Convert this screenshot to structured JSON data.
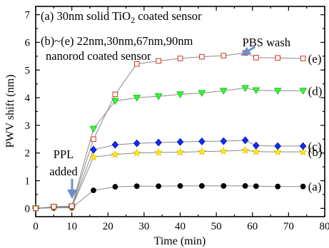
{
  "chart_data": {
    "type": "scatter",
    "xlabel": "Time (min)",
    "ylabel": "PWV shift (nm)",
    "xlim": [
      0,
      80
    ],
    "ylim": [
      -0.3,
      7.3
    ],
    "x_ticks": [
      0,
      10,
      20,
      30,
      40,
      50,
      60,
      70,
      80
    ],
    "y_ticks": [
      0,
      1,
      2,
      3,
      4,
      5,
      6,
      7
    ],
    "grid": false,
    "annotations": {
      "line_a_pre": "(a) 30nm solid TiO",
      "line_a_sub": "2",
      "line_a_post": " coated sensor",
      "line_b": "(b)~(e) 22nm,30nm,67nm,90nm",
      "line_c": "nanorod coated sensor",
      "ppl_1": "PPL",
      "ppl_2": "added",
      "pbs": "PBS wash"
    },
    "series": [
      {
        "name": "(a)",
        "marker": "circle",
        "color": "#000000",
        "fill": "#000000",
        "points": [
          [
            0,
            0
          ],
          [
            5,
            0.02
          ],
          [
            10,
            0.02
          ],
          [
            16,
            0.65
          ],
          [
            22,
            0.78
          ],
          [
            28,
            0.8
          ],
          [
            34,
            0.8
          ],
          [
            40,
            0.81
          ],
          [
            46,
            0.81
          ],
          [
            52,
            0.81
          ],
          [
            58,
            0.81
          ],
          [
            61,
            0.8
          ],
          [
            67,
            0.79
          ],
          [
            74,
            0.79
          ]
        ]
      },
      {
        "name": "(b)",
        "marker": "star",
        "color": "#e0c000",
        "fill": "#ffee00",
        "points": [
          [
            0,
            0
          ],
          [
            5,
            0.03
          ],
          [
            10,
            0.04
          ],
          [
            16,
            1.85
          ],
          [
            22,
            1.95
          ],
          [
            28,
            2.0
          ],
          [
            34,
            2.02
          ],
          [
            40,
            2.03
          ],
          [
            46,
            2.05
          ],
          [
            52,
            2.07
          ],
          [
            58,
            2.1
          ],
          [
            61,
            2.05
          ],
          [
            67,
            2.04
          ],
          [
            74,
            2.04
          ]
        ]
      },
      {
        "name": "(c)",
        "marker": "diamond",
        "color": "#0000c8",
        "fill": "#1030e8",
        "points": [
          [
            0,
            0
          ],
          [
            5,
            0.03
          ],
          [
            10,
            0.05
          ],
          [
            16,
            2.12
          ],
          [
            22,
            2.3
          ],
          [
            28,
            2.35
          ],
          [
            34,
            2.38
          ],
          [
            40,
            2.4
          ],
          [
            46,
            2.42
          ],
          [
            52,
            2.43
          ],
          [
            58,
            2.46
          ],
          [
            61,
            2.27
          ],
          [
            67,
            2.25
          ],
          [
            74,
            2.25
          ]
        ]
      },
      {
        "name": "(d)",
        "marker": "triangle-down",
        "color": "#00b000",
        "fill": "#33ff33",
        "points": [
          [
            0,
            0
          ],
          [
            5,
            0.04
          ],
          [
            10,
            0.06
          ],
          [
            16,
            2.88
          ],
          [
            22,
            3.88
          ],
          [
            28,
            4.0
          ],
          [
            34,
            4.05
          ],
          [
            40,
            4.12
          ],
          [
            46,
            4.17
          ],
          [
            52,
            4.25
          ],
          [
            58,
            4.35
          ],
          [
            61,
            4.27
          ],
          [
            67,
            4.25
          ],
          [
            74,
            4.25
          ]
        ]
      },
      {
        "name": "(e)",
        "marker": "square-open",
        "color": "#d03020",
        "fill": "#ffffff",
        "points": [
          [
            0,
            0
          ],
          [
            5,
            0.06
          ],
          [
            10,
            0.08
          ],
          [
            16,
            2.5
          ],
          [
            22,
            4.12
          ],
          [
            28,
            5.22
          ],
          [
            34,
            5.33
          ],
          [
            40,
            5.42
          ],
          [
            46,
            5.48
          ],
          [
            52,
            5.52
          ],
          [
            58,
            5.62
          ],
          [
            61,
            5.45
          ],
          [
            67,
            5.44
          ],
          [
            74,
            5.42
          ]
        ]
      }
    ]
  }
}
